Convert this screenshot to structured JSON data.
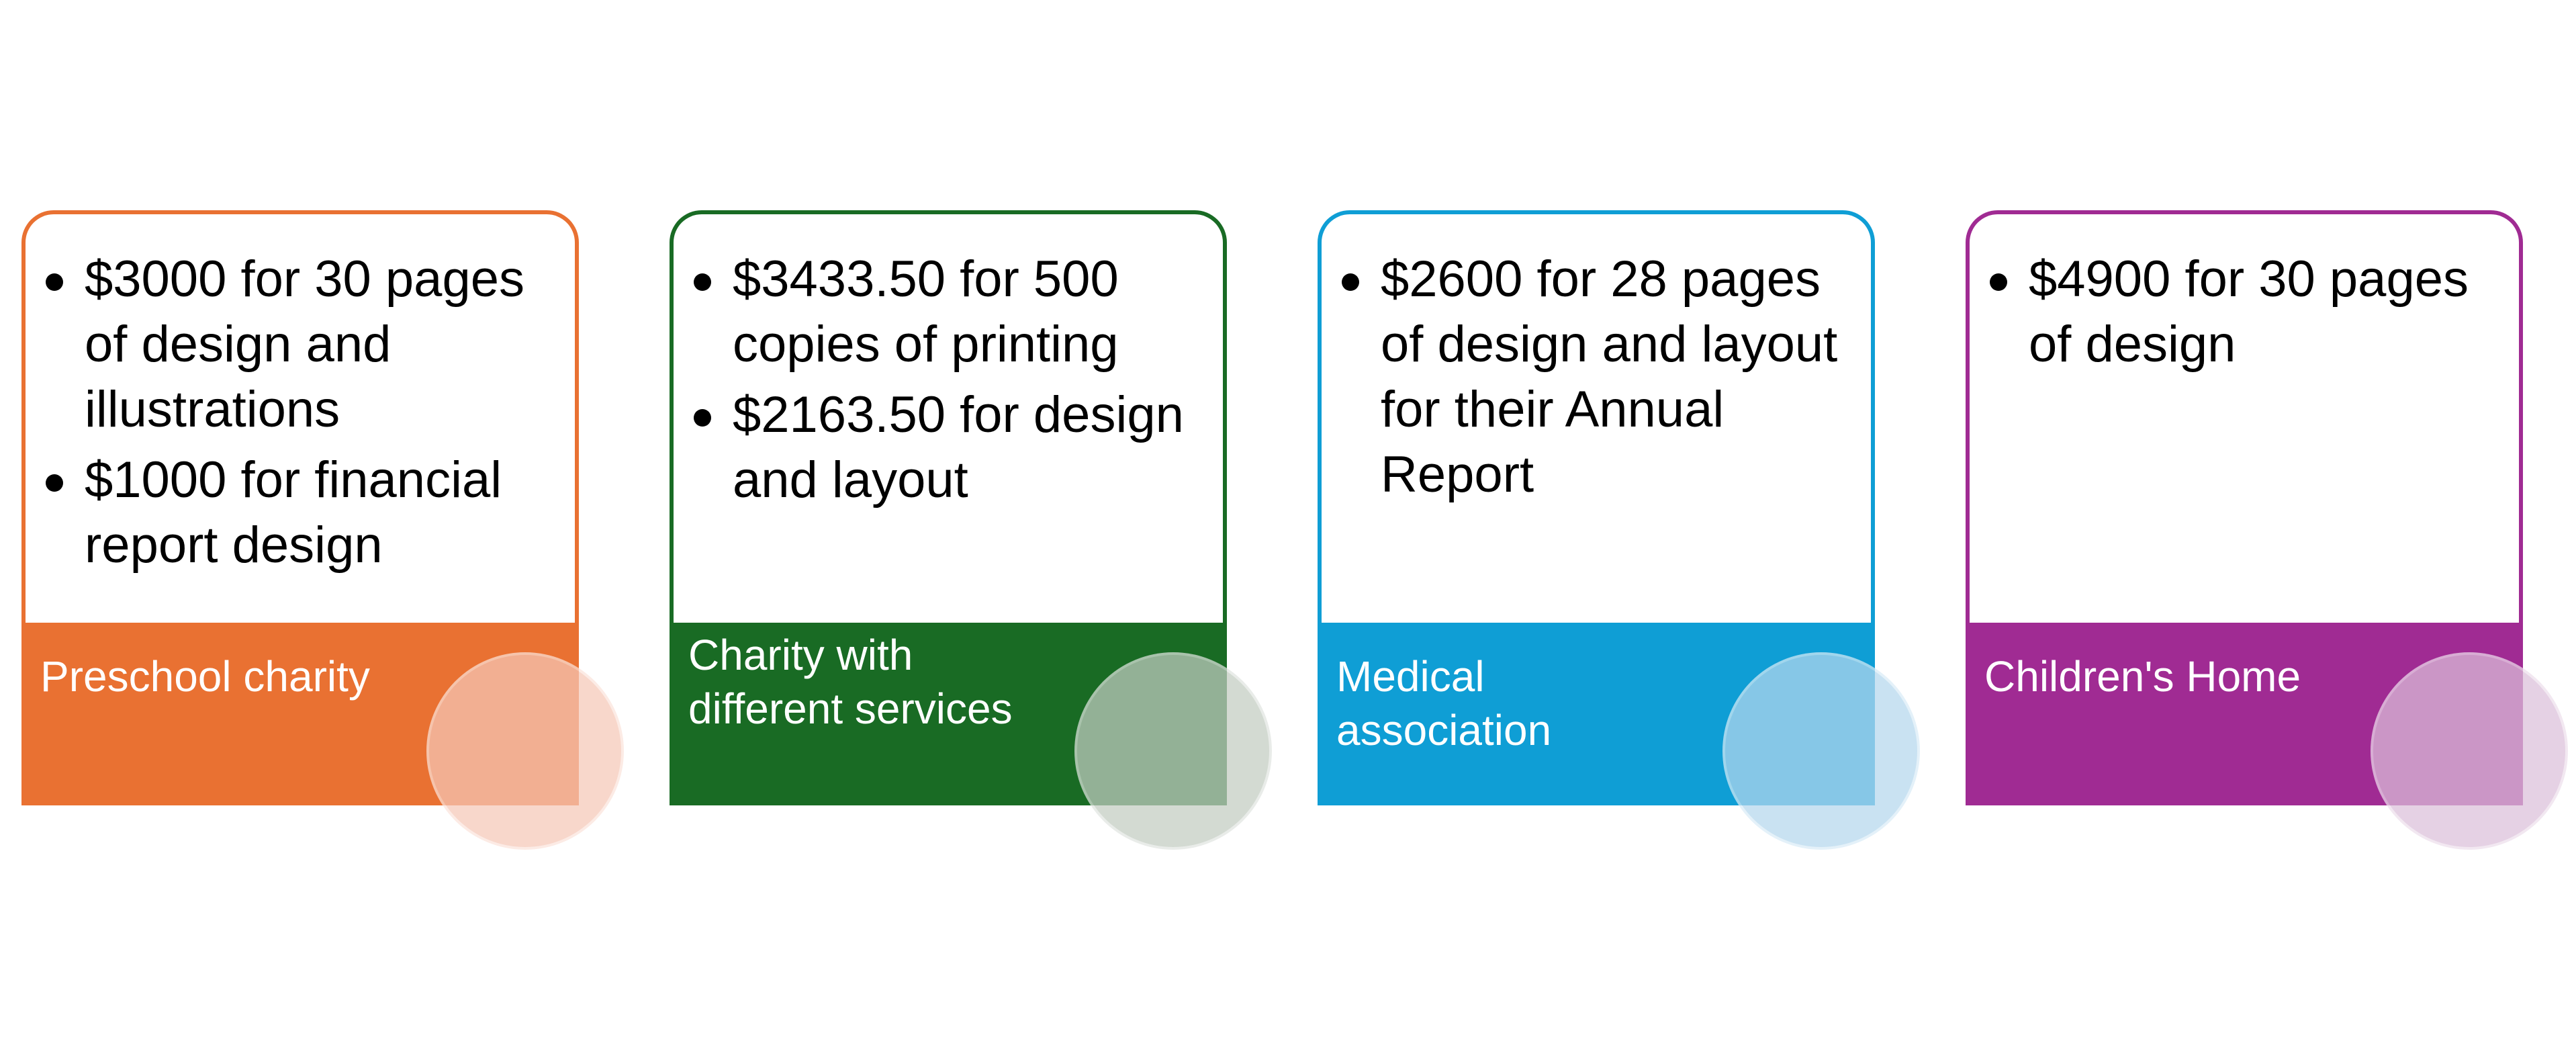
{
  "cards": [
    {
      "label": "Preschool charity",
      "color": "#E97132",
      "circle_color": "#F6C8B8",
      "bullets": [
        "$3000 for 30 pages of design and illustrations",
        "$1000 for financial report design"
      ]
    },
    {
      "label": "Charity with different services",
      "color": "#196B24",
      "circle_color": "#C3CDC2",
      "bullets": [
        "$3433.50 for 500 copies of printing",
        "$2163.50 for design and layout"
      ]
    },
    {
      "label": "Medical association",
      "color": "#0F9ED5",
      "circle_color": "#B5D8EE",
      "bullets": [
        "$2600 for 28 pages of design and layout for their Annual Report"
      ]
    },
    {
      "label": "Children's Home",
      "color": "#A02B93",
      "circle_color": "#DCC0DA",
      "bullets": [
        "$4900 for 30 pages of design"
      ]
    }
  ]
}
